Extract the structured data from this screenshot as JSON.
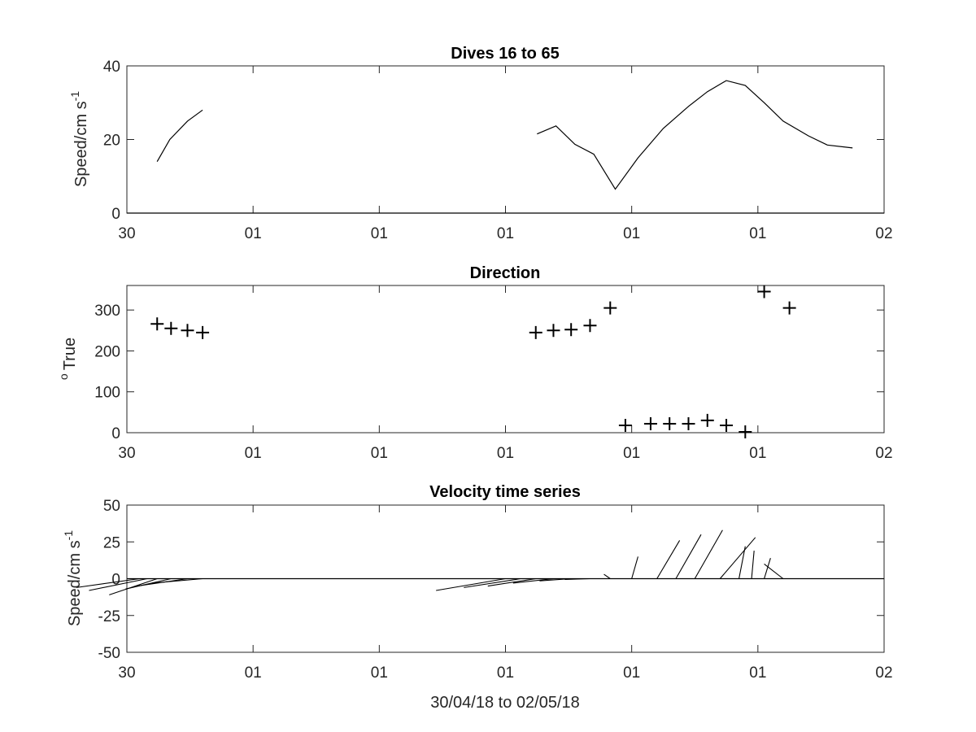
{
  "figure": {
    "xlabel": "30/04/18 to 02/05/18"
  },
  "chart_data": [
    {
      "type": "line",
      "title": "Dives 16 to 65",
      "ylabel_main": "Speed/cm s",
      "ylabel_sup": "-1",
      "xlim": [
        0,
        6
      ],
      "ylim": [
        0,
        40
      ],
      "yticks": [
        0,
        20,
        40
      ],
      "xticks": [
        0,
        1,
        2,
        3,
        4,
        5,
        6
      ],
      "xticklabels": [
        "30",
        "01",
        "01",
        "01",
        "01",
        "01",
        "02"
      ],
      "series": [
        {
          "segments": [
            [
              [
                0.24,
                14
              ],
              [
                0.34,
                20
              ],
              [
                0.48,
                25
              ],
              [
                0.6,
                28
              ]
            ],
            [
              [
                3.25,
                21.5
              ],
              [
                3.4,
                23.7
              ],
              [
                3.55,
                18.7
              ],
              [
                3.7,
                16
              ],
              [
                3.87,
                6.5
              ],
              [
                4.05,
                15
              ],
              [
                4.25,
                23
              ],
              [
                4.45,
                29
              ],
              [
                4.6,
                33
              ],
              [
                4.75,
                36
              ],
              [
                4.9,
                34.7
              ],
              [
                5.05,
                30
              ],
              [
                5.2,
                25
              ],
              [
                5.4,
                21
              ],
              [
                5.55,
                18.5
              ],
              [
                5.75,
                17.7
              ]
            ]
          ]
        }
      ]
    },
    {
      "type": "scatter",
      "title": "Direction",
      "ylabel_main": "True",
      "ylabel_sup": "o",
      "xlim": [
        0,
        6
      ],
      "ylim": [
        0,
        360
      ],
      "yticks": [
        0,
        100,
        200,
        300
      ],
      "xticks": [
        0,
        1,
        2,
        3,
        4,
        5,
        6
      ],
      "xticklabels": [
        "30",
        "01",
        "01",
        "01",
        "01",
        "01",
        "02"
      ],
      "marker": "+",
      "points": [
        [
          0.24,
          266
        ],
        [
          0.35,
          255
        ],
        [
          0.48,
          250
        ],
        [
          0.6,
          245
        ],
        [
          3.24,
          245
        ],
        [
          3.38,
          250
        ],
        [
          3.52,
          252
        ],
        [
          3.67,
          262
        ],
        [
          3.83,
          305
        ],
        [
          3.95,
          18
        ],
        [
          4.15,
          22
        ],
        [
          4.3,
          22
        ],
        [
          4.45,
          22
        ],
        [
          4.6,
          30
        ],
        [
          4.75,
          18
        ],
        [
          4.9,
          2
        ],
        [
          5.05,
          345
        ],
        [
          5.25,
          305
        ]
      ]
    },
    {
      "type": "stick",
      "title": "Velocity time series",
      "ylabel_main": "Speed/cm s",
      "ylabel_sup": "-1",
      "xlim": [
        0,
        6
      ],
      "ylim": [
        -50,
        50
      ],
      "yticks": [
        -50,
        -25,
        0,
        25,
        50
      ],
      "xticks": [
        0,
        1,
        2,
        3,
        4,
        5,
        6
      ],
      "xticklabels": [
        "30",
        "01",
        "01",
        "01",
        "01",
        "01",
        "02"
      ],
      "sticks": [
        [
          0.1,
          -0.5,
          -6
        ],
        [
          0.16,
          -0.46,
          -8
        ],
        [
          0.24,
          -0.38,
          -11
        ],
        [
          0.35,
          -0.36,
          -7
        ],
        [
          0.48,
          -0.4,
          -5
        ],
        [
          0.6,
          -0.4,
          -3
        ],
        [
          3.0,
          -0.55,
          -8
        ],
        [
          3.12,
          -0.45,
          -6
        ],
        [
          3.24,
          -0.38,
          -5
        ],
        [
          3.38,
          -0.32,
          -3
        ],
        [
          3.52,
          -0.25,
          -1.5
        ],
        [
          3.67,
          -0.2,
          -0.5
        ],
        [
          3.83,
          -0.05,
          3
        ],
        [
          4.0,
          0.05,
          15
        ],
        [
          4.2,
          0.18,
          26
        ],
        [
          4.35,
          0.2,
          30
        ],
        [
          4.5,
          0.22,
          33
        ],
        [
          4.7,
          0.28,
          28
        ],
        [
          4.85,
          0.05,
          22
        ],
        [
          4.95,
          0.02,
          19
        ],
        [
          5.05,
          0.05,
          14
        ],
        [
          5.2,
          -0.15,
          10
        ]
      ]
    }
  ]
}
